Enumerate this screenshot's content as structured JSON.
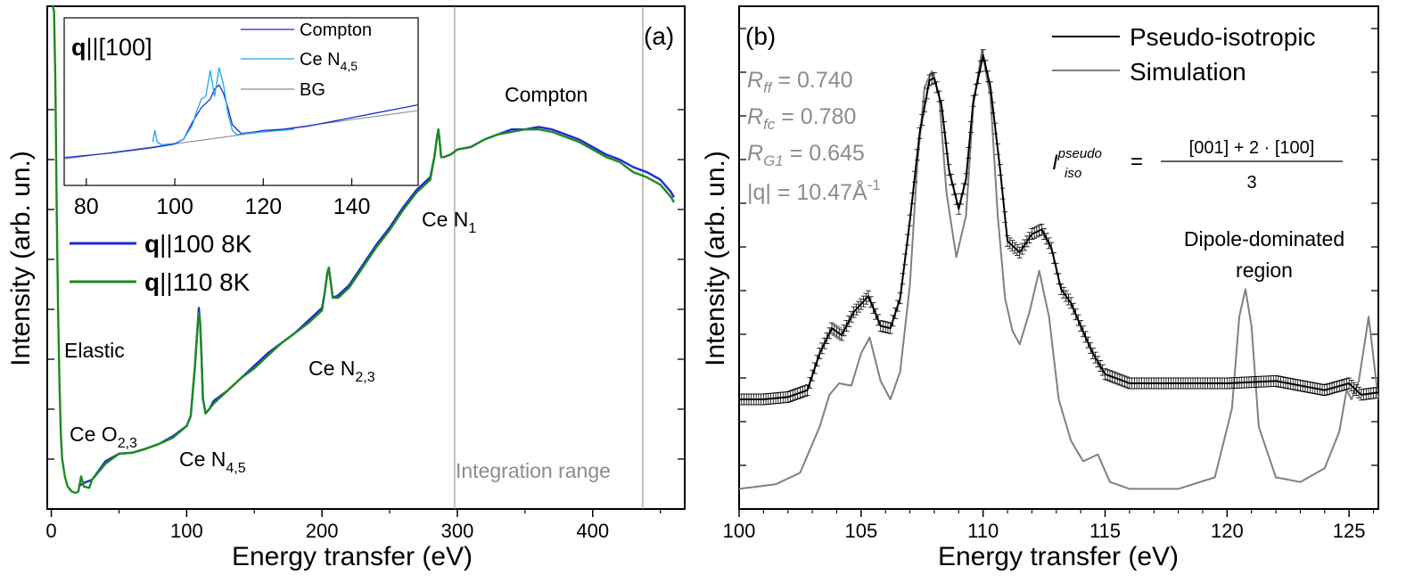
{
  "chart_data": [
    {
      "panel": "(a)",
      "type": "line",
      "xlabel": "Energy transfer (eV)",
      "ylabel": "Intensity (arb. un.)",
      "xlim": [
        -3,
        468
      ],
      "ylim": [
        0,
        1
      ],
      "x_ticks": [
        0,
        100,
        200,
        300,
        400
      ],
      "legend": {
        "placement": "middle-left",
        "entries": [
          {
            "bold": "q",
            "rest": "||100 8K",
            "color": "#1d2bd6"
          },
          {
            "bold": "q",
            "rest": "||110 8K",
            "color": "#1f8a1f"
          }
        ]
      },
      "annotations": {
        "elastic": "Elastic",
        "ce_o23_main": "Ce O",
        "ce_o23_sub": "2,3",
        "ce_n45_main": "Ce N",
        "ce_n45_sub": "4,5",
        "ce_n23_main": "Ce N",
        "ce_n23_sub": "2,3",
        "ce_n1_main": "Ce N",
        "ce_n1_sub": "1",
        "compton": "Compton",
        "integration_range": "Integration range"
      },
      "integration_range": [
        298,
        437
      ],
      "series": [
        {
          "name": "q||100 8K",
          "color": "#1d2bd6",
          "x": [
            20,
            24,
            30,
            40,
            50,
            60,
            70,
            80,
            90,
            100,
            103,
            106,
            108,
            109,
            110,
            111,
            112,
            114,
            117,
            120,
            130,
            140,
            150,
            160,
            170,
            180,
            190,
            200,
            202,
            204,
            205,
            206,
            208,
            212,
            220,
            230,
            240,
            250,
            260,
            270,
            280,
            283,
            285,
            286,
            287,
            288,
            290,
            295,
            300,
            310,
            320,
            330,
            340,
            350,
            360,
            370,
            380,
            390,
            400,
            410,
            420,
            430,
            440,
            450,
            458,
            460
          ],
          "values": [
            0.045,
            0.052,
            0.058,
            0.095,
            0.11,
            0.112,
            0.12,
            0.13,
            0.145,
            0.165,
            0.185,
            0.28,
            0.36,
            0.4,
            0.37,
            0.3,
            0.22,
            0.19,
            0.2,
            0.215,
            0.235,
            0.26,
            0.285,
            0.31,
            0.33,
            0.35,
            0.375,
            0.4,
            0.43,
            0.47,
            0.48,
            0.46,
            0.42,
            0.425,
            0.445,
            0.485,
            0.525,
            0.56,
            0.6,
            0.635,
            0.66,
            0.7,
            0.74,
            0.755,
            0.73,
            0.7,
            0.7,
            0.705,
            0.715,
            0.72,
            0.735,
            0.745,
            0.755,
            0.755,
            0.76,
            0.755,
            0.745,
            0.735,
            0.72,
            0.705,
            0.695,
            0.68,
            0.67,
            0.655,
            0.63,
            0.62
          ]
        },
        {
          "name": "q||110 8K",
          "color": "#1f8a1f",
          "x": [
            0.5,
            1,
            2,
            3,
            4,
            5,
            6,
            7,
            8,
            10,
            12,
            15,
            18,
            20,
            22,
            24,
            28,
            30,
            40,
            50,
            60,
            70,
            80,
            90,
            100,
            103,
            106,
            108,
            109,
            110,
            111,
            112,
            114,
            117,
            120,
            130,
            140,
            150,
            160,
            170,
            180,
            190,
            200,
            202,
            204,
            205,
            206,
            208,
            212,
            220,
            230,
            240,
            250,
            260,
            270,
            280,
            283,
            285,
            286,
            287,
            288,
            290,
            295,
            300,
            310,
            320,
            330,
            340,
            350,
            360,
            370,
            380,
            390,
            400,
            410,
            420,
            430,
            440,
            450,
            458,
            460
          ],
          "values": [
            1.0,
            1.0,
            0.99,
            0.85,
            0.6,
            0.4,
            0.25,
            0.15,
            0.1,
            0.065,
            0.045,
            0.035,
            0.032,
            0.035,
            0.065,
            0.045,
            0.042,
            0.058,
            0.09,
            0.11,
            0.112,
            0.12,
            0.13,
            0.142,
            0.165,
            0.185,
            0.28,
            0.36,
            0.39,
            0.37,
            0.3,
            0.22,
            0.19,
            0.2,
            0.21,
            0.235,
            0.26,
            0.28,
            0.305,
            0.33,
            0.35,
            0.37,
            0.395,
            0.43,
            0.47,
            0.48,
            0.46,
            0.42,
            0.42,
            0.44,
            0.48,
            0.52,
            0.555,
            0.595,
            0.63,
            0.655,
            0.7,
            0.74,
            0.755,
            0.73,
            0.7,
            0.7,
            0.705,
            0.715,
            0.72,
            0.735,
            0.745,
            0.75,
            0.755,
            0.755,
            0.75,
            0.74,
            0.73,
            0.715,
            0.7,
            0.69,
            0.67,
            0.66,
            0.645,
            0.62,
            0.61
          ]
        }
      ],
      "inset": {
        "title_bold": "q",
        "title_rest": "||[100]",
        "xlim": [
          75,
          155
        ],
        "ylim": [
          0,
          1
        ],
        "x_ticks": [
          80,
          100,
          120,
          140
        ],
        "legend": [
          {
            "label": "Compton",
            "color": "#1d2bd6"
          },
          {
            "label_main": "Ce N",
            "label_sub": "4,5",
            "color": "#1ea7ea"
          },
          {
            "label": "BG",
            "color": "#8c8c8c"
          }
        ],
        "series": [
          {
            "name": "Compton",
            "color": "#1d2bd6",
            "x": [
              75,
              80,
              85,
              90,
              95,
              100,
              102,
              104,
              106,
              108,
              109,
              110,
              111,
              112,
              113,
              115,
              118,
              120,
              125,
              130,
              135,
              140,
              145,
              150,
              155
            ],
            "values": [
              0.07,
              0.085,
              0.1,
              0.12,
              0.14,
              0.165,
              0.2,
              0.32,
              0.42,
              0.48,
              0.55,
              0.58,
              0.52,
              0.42,
              0.3,
              0.24,
              0.25,
              0.26,
              0.27,
              0.29,
              0.32,
              0.35,
              0.38,
              0.41,
              0.44
            ]
          },
          {
            "name": "Ce N4,5",
            "color": "#1ea7ea",
            "x": [
              95,
              95.5,
              96,
              97,
              100,
              102,
              104,
              105,
              106,
              107,
              108,
              109,
              110,
              111,
              112,
              113,
              114,
              116,
              120,
              124,
              127
            ],
            "values": [
              0.18,
              0.26,
              0.18,
              0.16,
              0.17,
              0.2,
              0.3,
              0.4,
              0.48,
              0.5,
              0.68,
              0.5,
              0.7,
              0.58,
              0.38,
              0.26,
              0.23,
              0.24,
              0.25,
              0.26,
              0.27
            ]
          },
          {
            "name": "BG",
            "color": "#8c8c8c",
            "x": [
              75,
              155
            ],
            "values": [
              0.06,
              0.4
            ]
          }
        ]
      }
    },
    {
      "panel": "(b)",
      "type": "line",
      "xlabel": "Energy transfer (eV)",
      "ylabel": "Intensity (arb. un.)",
      "xlim": [
        100,
        126.2
      ],
      "ylim": [
        0,
        1
      ],
      "x_ticks": [
        100,
        105,
        110,
        115,
        120,
        125
      ],
      "legend": {
        "placement": "top-right",
        "entries": [
          {
            "label": "Pseudo-isotropic",
            "color": "#000000"
          },
          {
            "label": "Simulation",
            "color": "#808080"
          }
        ]
      },
      "stats": {
        "rff_label": "R",
        "rff_sub": "ff",
        "rff_value": " = 0.740",
        "rfc_label": "R",
        "rfc_sub": "fc",
        "rfc_value": " = 0.780",
        "rg1_label": "R",
        "rg1_sub": "G1",
        "rg1_value": " = 0.645",
        "q_text": "|q| = 10.47",
        "q_unit": "Å",
        "q_exp": "-1"
      },
      "formula": {
        "lhs_main": "I",
        "lhs_sup": "pseudo",
        "lhs_sub": "iso",
        "equals": "=",
        "numerator": "[001] + 2 · [100]",
        "denominator": "3"
      },
      "region_label_line1": "Dipole-dominated",
      "region_label_line2": "region",
      "series": [
        {
          "name": "Pseudo-isotropic",
          "color": "#000000",
          "x": [
            100,
            101,
            102,
            102.8,
            103.3,
            103.8,
            104.2,
            104.7,
            105.3,
            105.8,
            106.2,
            106.6,
            107.0,
            107.4,
            107.8,
            108.0,
            108.3,
            108.6,
            109.0,
            109.3,
            109.6,
            110.0,
            110.3,
            110.7,
            111.0,
            111.5,
            112.0,
            112.4,
            112.8,
            113.2,
            113.6,
            114.0,
            114.5,
            115.0,
            115.5,
            116,
            118,
            120,
            122,
            124,
            125,
            125.5,
            126.2
          ],
          "values": [
            0.2,
            0.2,
            0.205,
            0.22,
            0.3,
            0.355,
            0.34,
            0.39,
            0.425,
            0.36,
            0.355,
            0.42,
            0.59,
            0.78,
            0.895,
            0.9,
            0.84,
            0.7,
            0.615,
            0.68,
            0.85,
            0.95,
            0.88,
            0.7,
            0.545,
            0.52,
            0.56,
            0.57,
            0.53,
            0.44,
            0.41,
            0.36,
            0.3,
            0.255,
            0.245,
            0.235,
            0.235,
            0.235,
            0.24,
            0.22,
            0.235,
            0.21,
            0.215
          ]
        },
        {
          "name": "Simulation",
          "color": "#808080",
          "x": [
            100,
            101.5,
            102.5,
            103.3,
            103.7,
            104.1,
            104.6,
            105.0,
            105.35,
            105.8,
            106.2,
            106.6,
            107.0,
            107.3,
            107.6,
            107.9,
            108.2,
            108.5,
            108.9,
            109.3,
            109.6,
            109.95,
            110.3,
            110.6,
            110.9,
            111.2,
            111.5,
            111.9,
            112.3,
            112.7,
            113.1,
            113.6,
            114.1,
            114.7,
            115.2,
            116,
            118,
            119.5,
            120.2,
            120.5,
            120.75,
            121.0,
            121.3,
            122,
            123,
            124,
            124.6,
            124.9,
            125.1,
            125.4,
            125.8,
            126.2
          ],
          "values": [
            0.005,
            0.015,
            0.04,
            0.14,
            0.21,
            0.235,
            0.23,
            0.3,
            0.335,
            0.24,
            0.2,
            0.26,
            0.45,
            0.71,
            0.88,
            0.915,
            0.86,
            0.65,
            0.51,
            0.6,
            0.84,
            0.96,
            0.86,
            0.6,
            0.42,
            0.35,
            0.32,
            0.39,
            0.48,
            0.38,
            0.2,
            0.11,
            0.065,
            0.08,
            0.02,
            0.005,
            0.005,
            0.03,
            0.18,
            0.38,
            0.44,
            0.36,
            0.14,
            0.03,
            0.02,
            0.05,
            0.13,
            0.22,
            0.2,
            0.24,
            0.38,
            0.2
          ]
        }
      ]
    }
  ]
}
